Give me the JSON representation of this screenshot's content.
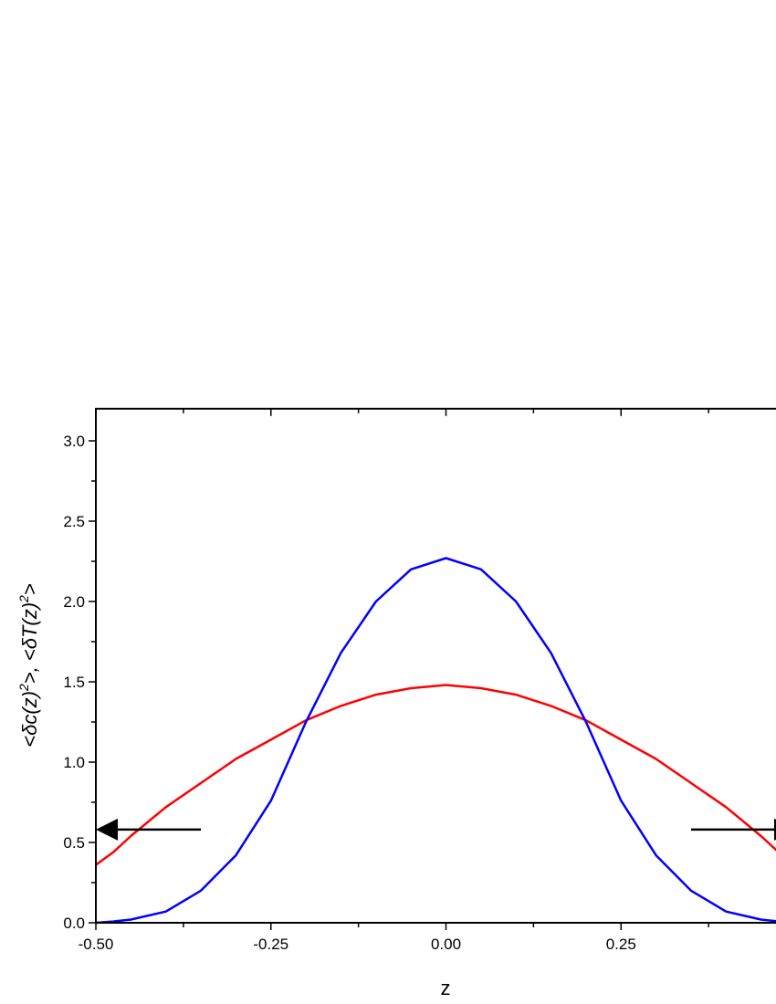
{
  "chart_data": {
    "type": "line",
    "xlabel": "z",
    "ylabel_parts": [
      "<δc(z)",
      "2",
      ">,  <δT(z)",
      "2",
      ">"
    ],
    "xlim": [
      -0.5,
      0.5
    ],
    "ylim": [
      0,
      3.2
    ],
    "x_ticks": [
      "-0.50",
      "-0.25",
      "0.00",
      "0.25"
    ],
    "y_ticks": [
      "0.0",
      "0.5",
      "1.0",
      "1.5",
      "2.0",
      "2.5",
      "3.0"
    ],
    "grid": false,
    "x": [
      -0.5,
      -0.475,
      -0.45,
      -0.4,
      -0.35,
      -0.3,
      -0.25,
      -0.2,
      -0.15,
      -0.1,
      -0.05,
      0,
      0.05,
      0.1,
      0.15,
      0.2,
      0.25,
      0.3,
      0.35,
      0.4,
      0.45,
      0.475,
      0.5
    ],
    "series": [
      {
        "color": "#ff0000",
        "values": [
          0.36,
          0.44,
          0.54,
          0.72,
          0.87,
          1.02,
          1.14,
          1.26,
          1.35,
          1.42,
          1.46,
          1.48,
          1.46,
          1.42,
          1.35,
          1.26,
          1.14,
          1.02,
          0.87,
          0.72,
          0.54,
          0.44,
          0.36
        ]
      },
      {
        "color": "#0000ff",
        "values": [
          0.0,
          0.008,
          0.02,
          0.07,
          0.2,
          0.42,
          0.76,
          1.25,
          1.68,
          2.0,
          2.2,
          2.27,
          2.2,
          2.0,
          1.68,
          1.25,
          0.76,
          0.42,
          0.2,
          0.07,
          0.02,
          0.008,
          0.0
        ]
      }
    ],
    "annotations": [
      {
        "type": "arrow",
        "direction": "left",
        "y": 0.58,
        "x_from": -0.35,
        "x_to": -0.5
      },
      {
        "type": "arrow",
        "direction": "right",
        "y": 0.58,
        "x_from": 0.35,
        "x_to": 0.5
      }
    ]
  }
}
